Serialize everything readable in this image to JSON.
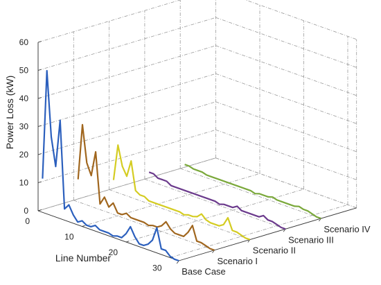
{
  "chart_data": {
    "type": "line",
    "title": "",
    "xlabel": "Line Number",
    "zlabel": "Power Loss (kW)",
    "x_range": [
      0,
      32
    ],
    "z_range": [
      0,
      60
    ],
    "x_ticks": [
      "0",
      "10",
      "20",
      "30"
    ],
    "z_ticks": [
      "0",
      "10",
      "20",
      "30",
      "40",
      "50",
      "60"
    ],
    "grid": true,
    "series": [
      {
        "name": "Base Case",
        "color": "#2b5fbd",
        "x": [
          1,
          2,
          3,
          4,
          5,
          6,
          7,
          8,
          9,
          10,
          11,
          12,
          13,
          14,
          15,
          16,
          17,
          18,
          19,
          20,
          21,
          22,
          23,
          24,
          25,
          26,
          27,
          28,
          29,
          30,
          31,
          32
        ],
        "values": [
          12,
          51,
          28,
          18,
          35,
          4,
          6,
          3,
          1,
          2,
          1,
          1,
          2,
          1,
          1,
          1,
          0.5,
          1,
          1,
          3,
          6,
          3,
          1,
          1,
          2,
          4,
          9,
          2,
          2,
          0.5,
          0,
          0
        ]
      },
      {
        "name": "Scenario I",
        "color": "#a0661e",
        "x": [
          1,
          2,
          3,
          4,
          5,
          6,
          7,
          8,
          9,
          10,
          11,
          12,
          13,
          14,
          15,
          16,
          17,
          18,
          19,
          20,
          21,
          22,
          23,
          24,
          25,
          26,
          27,
          28,
          29,
          30,
          31,
          32
        ],
        "values": [
          8,
          28,
          15,
          11,
          20,
          2,
          5,
          2,
          4,
          1,
          1,
          2,
          1,
          1,
          1,
          1,
          0.5,
          1,
          1,
          2,
          4,
          2,
          1,
          1,
          1,
          3,
          6,
          1,
          1,
          0.5,
          0,
          0
        ]
      },
      {
        "name": "Scenario II",
        "color": "#d4cc22",
        "x": [
          1,
          2,
          3,
          4,
          5,
          6,
          7,
          8,
          9,
          10,
          11,
          12,
          13,
          14,
          15,
          16,
          17,
          18,
          19,
          20,
          21,
          22,
          23,
          24,
          25,
          26,
          27,
          28,
          29,
          30,
          31,
          32
        ],
        "values": [
          4,
          17,
          10,
          7,
          13,
          3,
          2,
          2,
          1,
          1,
          1,
          1,
          1,
          1,
          1,
          1,
          0.5,
          1,
          1,
          1.5,
          3,
          1.5,
          1,
          1,
          1,
          2,
          5,
          1,
          1,
          0.5,
          0,
          0
        ]
      },
      {
        "name": "Scenario III",
        "color": "#6b3a8c",
        "x": [
          1,
          2,
          3,
          4,
          5,
          6,
          7,
          8,
          9,
          10,
          11,
          12,
          13,
          14,
          15,
          16,
          17,
          18,
          19,
          20,
          21,
          22,
          23,
          24,
          25,
          26,
          27,
          28,
          29,
          30,
          31,
          32
        ],
        "values": [
          3,
          3,
          2,
          2,
          2,
          1,
          1,
          1,
          1,
          1,
          1,
          1,
          1,
          1,
          1,
          1,
          0.5,
          1,
          1,
          1,
          2,
          1,
          1,
          1,
          1,
          1,
          2,
          1,
          1,
          0.5,
          0,
          0
        ]
      },
      {
        "name": "Scenario IV",
        "color": "#7aa83a",
        "x": [
          1,
          2,
          3,
          4,
          5,
          6,
          7,
          8,
          9,
          10,
          11,
          12,
          13,
          14,
          15,
          16,
          17,
          18,
          19,
          20,
          21,
          22,
          23,
          24,
          25,
          26,
          27,
          28,
          29,
          30,
          31,
          32
        ],
        "values": [
          2,
          2,
          1.5,
          1.5,
          1.5,
          1,
          1,
          1,
          1,
          1,
          1,
          1,
          1,
          1,
          1,
          1,
          0.5,
          1,
          1,
          1,
          1.5,
          1,
          1,
          1,
          1,
          1,
          1.5,
          1,
          1,
          0.5,
          0,
          0
        ]
      }
    ]
  }
}
